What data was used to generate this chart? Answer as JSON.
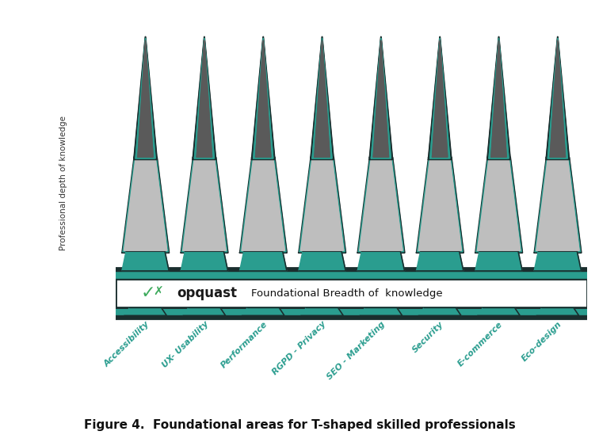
{
  "categories": [
    "Accessibility",
    "UX- Usability",
    "Performance",
    "RGPD - Privacy",
    "SEO - Marketing",
    "Security",
    "E-commerce",
    "Eco-design"
  ],
  "n_pyramids": 8,
  "teal": "#2a9d8f",
  "dark": "#1a2e2e",
  "dark_gray_fill": "#5a5a5a",
  "gray": "#bebebe",
  "white": "#ffffff",
  "bg_color": "#ffffff",
  "label_color": "#2a9d8f",
  "title_text": "Figure 4.  Foundational areas for T-shaped skilled professionals",
  "box_text": "Foundational Breadth of  knowledge",
  "ylabel": "Professional depth of knowledge",
  "opquast_green": "#3daa5c",
  "opquast_text_color": "#222222"
}
